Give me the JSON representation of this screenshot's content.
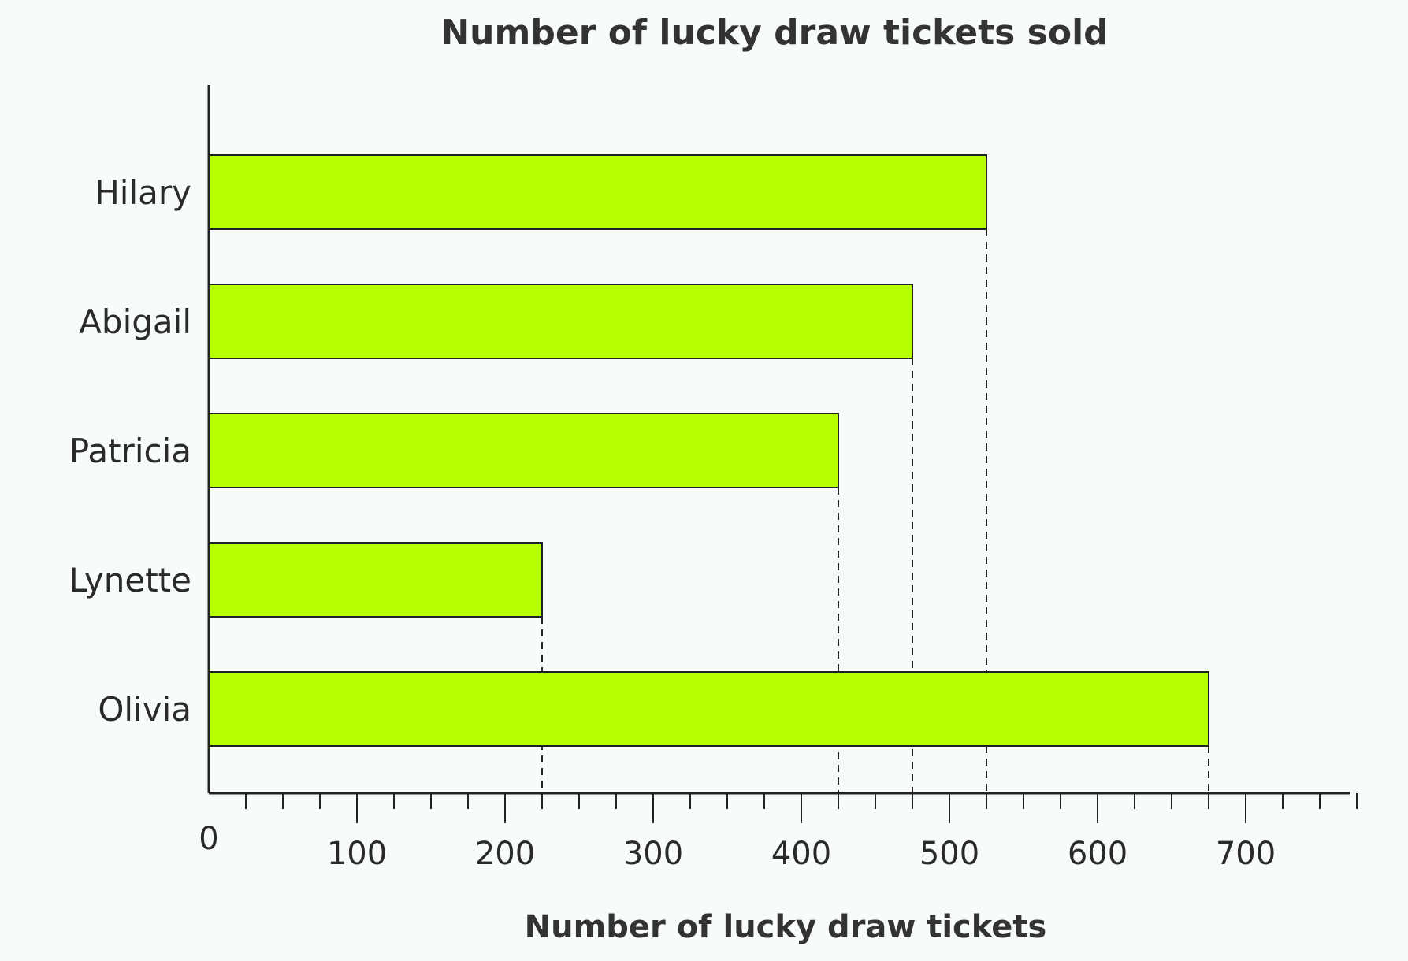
{
  "chart_data": {
    "type": "bar",
    "orientation": "horizontal",
    "title": "Number of lucky draw tickets sold",
    "xlabel": "Number of lucky draw tickets",
    "ylabel": "",
    "categories": [
      "Hilary",
      "Abigail",
      "Patricia",
      "Lynette",
      "Olivia"
    ],
    "values": [
      525,
      475,
      425,
      225,
      675
    ],
    "xlim": [
      0,
      775
    ],
    "x_major_ticks": [
      0,
      100,
      200,
      300,
      400,
      500,
      600,
      700
    ],
    "x_tick_labels": [
      "0",
      "100",
      "200",
      "300",
      "400",
      "500",
      "600",
      "700"
    ],
    "x_minor_tick_step": 25,
    "grid": false,
    "dashed_guides": true,
    "bar_color": "#b5ff00",
    "edge_color": "#222222"
  }
}
